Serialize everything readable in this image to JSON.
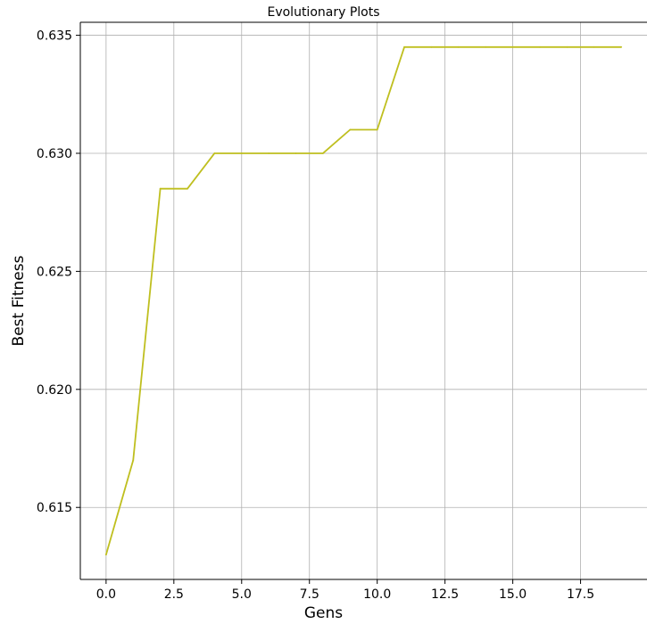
{
  "chart_data": {
    "type": "line",
    "title": "Evolutionary Plots",
    "xlabel": "Gens",
    "ylabel": "Best Fitness",
    "xlim": [
      -0.95,
      19.95
    ],
    "ylim": [
      0.61195,
      0.63555
    ],
    "grid": true,
    "xticks": [
      0.0,
      2.5,
      5.0,
      7.5,
      10.0,
      12.5,
      15.0,
      17.5
    ],
    "xtick_labels": [
      "0.0",
      "2.5",
      "5.0",
      "7.5",
      "10.0",
      "12.5",
      "15.0",
      "17.5"
    ],
    "yticks": [
      0.615,
      0.62,
      0.625,
      0.63,
      0.635
    ],
    "ytick_labels": [
      "0.615",
      "0.620",
      "0.625",
      "0.630",
      "0.635"
    ],
    "series": [
      {
        "color": "#bfbf1f",
        "x": [
          0,
          1,
          2,
          3,
          4,
          5,
          6,
          7,
          8,
          9,
          10,
          11,
          12,
          13,
          14,
          15,
          16,
          17,
          18,
          19
        ],
        "y": [
          0.613,
          0.617,
          0.6285,
          0.6285,
          0.63,
          0.63,
          0.63,
          0.63,
          0.63,
          0.631,
          0.631,
          0.6345,
          0.6345,
          0.6345,
          0.6345,
          0.6345,
          0.6345,
          0.6345,
          0.6345,
          0.6345
        ]
      }
    ]
  }
}
